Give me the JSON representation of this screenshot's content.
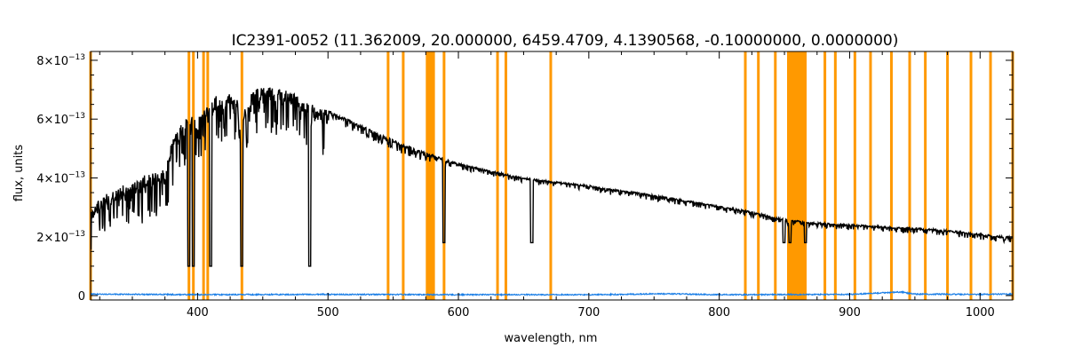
{
  "chart_data": {
    "type": "line",
    "title": "IC2391-0052   (11.362009, 20.000000, 6459.4709, 4.1390568, -0.10000000, 0.0000000)",
    "xlabel": "wavelength, nm",
    "ylabel": "flux, units",
    "xlim": [
      318,
      1025
    ],
    "ylim": [
      -0.15,
      8.3
    ],
    "y_scale_note": "x10^-13",
    "x_ticks": [
      400,
      500,
      600,
      700,
      800,
      900,
      1000
    ],
    "x_tick_labels": [
      "400",
      "500",
      "600",
      "700",
      "800",
      "900",
      "1000"
    ],
    "y_ticks": [
      0,
      2,
      4,
      6,
      8
    ],
    "y_tick_labels": [
      {
        "mantissa": "0",
        "exp": ""
      },
      {
        "mantissa": "2×10",
        "exp": "−13"
      },
      {
        "mantissa": "4×10",
        "exp": "−13"
      },
      {
        "mantissa": "6×10",
        "exp": "−13"
      },
      {
        "mantissa": "8×10",
        "exp": "−13"
      }
    ],
    "grid": false,
    "series": [
      {
        "color": "#000000",
        "x": [
          318,
          330,
          345,
          360,
          375,
          380,
          385,
          390,
          395,
          400,
          405,
          410,
          415,
          420,
          425,
          430,
          435,
          440,
          445,
          450,
          455,
          460,
          465,
          470,
          475,
          480,
          485,
          490,
          495,
          500,
          510,
          520,
          530,
          540,
          550,
          560,
          570,
          575,
          580,
          590,
          600,
          620,
          640,
          660,
          680,
          700,
          720,
          740,
          760,
          780,
          800,
          820,
          840,
          850,
          870,
          890,
          910,
          930,
          950,
          970,
          990,
          1010,
          1025
        ],
        "y": [
          3.0,
          3.5,
          3.8,
          4.1,
          4.3,
          5.2,
          5.7,
          6.0,
          6.2,
          6.0,
          6.4,
          6.7,
          6.8,
          6.6,
          6.9,
          6.7,
          6.2,
          6.8,
          7.0,
          7.1,
          7.1,
          7.05,
          7.0,
          6.95,
          6.85,
          6.75,
          6.6,
          6.5,
          6.4,
          6.3,
          6.1,
          5.9,
          5.7,
          5.5,
          5.3,
          5.1,
          4.95,
          4.85,
          4.8,
          4.65,
          4.5,
          4.3,
          4.1,
          3.95,
          3.85,
          3.75,
          3.6,
          3.5,
          3.35,
          3.2,
          3.05,
          2.9,
          2.7,
          2.6,
          2.5,
          2.45,
          2.4,
          2.35,
          2.3,
          2.25,
          2.15,
          2.05,
          2.0
        ]
      },
      {
        "color": "#1a7ee6",
        "x": [
          318,
          400,
          500,
          600,
          700,
          760,
          800,
          900,
          940,
          945,
          950,
          1000,
          1025
        ],
        "y": [
          0.05,
          0.03,
          0.04,
          0.03,
          0.03,
          0.06,
          0.03,
          0.04,
          0.12,
          0.08,
          0.05,
          0.04,
          0.05
        ]
      }
    ],
    "bands": {
      "color": "#ff9900",
      "lines": [
        318,
        393.4,
        396.8,
        404.6,
        407.8,
        434.0,
        546.1,
        557.7,
        589.0,
        630.0,
        636.4,
        670.8,
        820.0,
        830.0,
        843.0,
        881.0,
        889.0,
        904.0,
        916.0,
        932.0,
        946.0,
        958.0,
        975.0,
        993.0,
        1008.0,
        1025.0
      ],
      "spans": [
        [
          575,
          582
        ],
        [
          852,
          867
        ]
      ]
    }
  }
}
